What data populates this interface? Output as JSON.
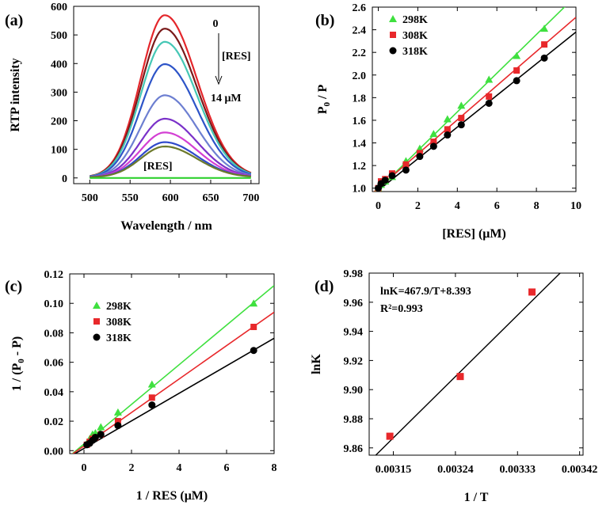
{
  "chart_data": [
    {
      "id": "a",
      "panel_label": "(a)",
      "type": "line",
      "xlabel": "Wavelength / nm",
      "ylabel": "RTP intensity",
      "xlim": [
        480,
        710
      ],
      "ylim": [
        -20,
        600
      ],
      "xticks": [
        500,
        550,
        600,
        650,
        700
      ],
      "yticks": [
        0,
        100,
        200,
        300,
        400,
        500,
        600
      ],
      "annotations": {
        "start": "0",
        "res": "[RES]",
        "end": "14 μM",
        "bottom": "[RES]"
      },
      "colors": [
        "#e4262b",
        "#7a1a1a",
        "#45c7b5",
        "#2d54c8",
        "#6d7fd1",
        "#7a31c9",
        "#d33fd3",
        "#2f49cb",
        "#6d7a2c",
        "#2fd12f"
      ],
      "series": [
        {
          "peak": 567
        },
        {
          "peak": 520
        },
        {
          "peak": 474
        },
        {
          "peak": 396
        },
        {
          "peak": 287
        },
        {
          "peak": 205
        },
        {
          "peak": 157
        },
        {
          "peak": 123
        },
        {
          "peak": 108
        },
        {
          "peak": 0
        }
      ]
    },
    {
      "id": "b",
      "panel_label": "(b)",
      "type": "scatter",
      "xlabel": "[RES] (μM)",
      "ylabel": "P0 / P",
      "xlim": [
        -0.3,
        10
      ],
      "ylim": [
        0.97,
        2.6
      ],
      "xticks": [
        0,
        2,
        4,
        6,
        8,
        10
      ],
      "yticks": [
        1.0,
        1.2,
        1.4,
        1.6,
        1.8,
        2.0,
        2.2,
        2.4,
        2.6
      ],
      "legend": "top-left",
      "x": [
        0,
        0.14,
        0.35,
        0.7,
        1.4,
        2.1,
        2.8,
        3.5,
        4.2,
        5.6,
        7.0,
        8.4
      ],
      "series": [
        {
          "name": "298K",
          "marker": "triangle",
          "color": "#3fe03f",
          "values": [
            1.0,
            1.03,
            1.06,
            1.1,
            1.24,
            1.35,
            1.48,
            1.61,
            1.73,
            1.96,
            2.17,
            2.41
          ],
          "fit": {
            "slope": 0.171,
            "intercept": 0.99
          }
        },
        {
          "name": "308K",
          "marker": "square",
          "color": "#e8282b",
          "values": [
            1.0,
            1.06,
            1.08,
            1.13,
            1.21,
            1.31,
            1.41,
            1.52,
            1.62,
            1.81,
            2.04,
            2.27
          ],
          "fit": {
            "slope": 0.151,
            "intercept": 1.0
          }
        },
        {
          "name": "318K",
          "marker": "circle",
          "color": "#000000",
          "values": [
            1.0,
            1.04,
            1.07,
            1.11,
            1.16,
            1.28,
            1.37,
            1.47,
            1.56,
            1.75,
            1.95,
            2.15
          ],
          "fit": {
            "slope": 0.14,
            "intercept": 0.98
          }
        }
      ]
    },
    {
      "id": "c",
      "panel_label": "(c)",
      "type": "scatter",
      "xlabel": "1 / RES (μM)",
      "ylabel": "1 / (P0 - P)",
      "xlim": [
        -0.6,
        8
      ],
      "ylim": [
        -0.002,
        0.12
      ],
      "xticks": [
        0,
        2,
        4,
        6,
        8
      ],
      "yticks": [
        0.0,
        0.02,
        0.04,
        0.06,
        0.08,
        0.1,
        0.12
      ],
      "legend": "top-left",
      "x": [
        0.12,
        0.24,
        0.36,
        0.48,
        0.71,
        1.43,
        2.86,
        7.14
      ],
      "series": [
        {
          "name": "298K",
          "marker": "triangle",
          "color": "#3fe03f",
          "values": [
            0.005,
            0.008,
            0.011,
            0.012,
            0.016,
            0.026,
            0.045,
            0.1
          ],
          "fit": {
            "slope": 0.01345,
            "intercept": 0.0045
          }
        },
        {
          "name": "308K",
          "marker": "square",
          "color": "#e8282b",
          "values": [
            0.004,
            0.006,
            0.008,
            0.009,
            0.011,
            0.02,
            0.036,
            0.084
          ],
          "fit": {
            "slope": 0.01135,
            "intercept": 0.0032
          }
        },
        {
          "name": "318K",
          "marker": "circle",
          "color": "#000000",
          "values": [
            0.004,
            0.005,
            0.007,
            0.009,
            0.011,
            0.017,
            0.031,
            0.068
          ],
          "fit": {
            "slope": 0.00935,
            "intercept": 0.0015
          }
        }
      ]
    },
    {
      "id": "d",
      "panel_label": "(d)",
      "type": "scatter",
      "xlabel": "1 / T",
      "ylabel": "lnK",
      "xlim": [
        0.003115,
        0.003425
      ],
      "ylim": [
        9.855,
        9.98
      ],
      "xticks": [
        0.00315,
        0.00324,
        0.00333,
        0.00342
      ],
      "xtick_labels": [
        "0.00315",
        "0.00324",
        "0.00333",
        "0.00342"
      ],
      "yticks": [
        9.86,
        9.88,
        9.9,
        9.92,
        9.94,
        9.96,
        9.98
      ],
      "ytick_labels": [
        "9.86",
        "9.88",
        "9.90",
        "9.92",
        "9.94",
        "9.96",
        "9.98"
      ],
      "equation": "lnK=467.9/T+8.393",
      "r2": "R²=0.993",
      "x": [
        0.003145,
        0.003247,
        0.003351
      ],
      "values": [
        9.868,
        9.909,
        9.967
      ],
      "marker_color": "#e8282b",
      "fit": {
        "slope": 467.9,
        "intercept": 8.393
      }
    }
  ]
}
